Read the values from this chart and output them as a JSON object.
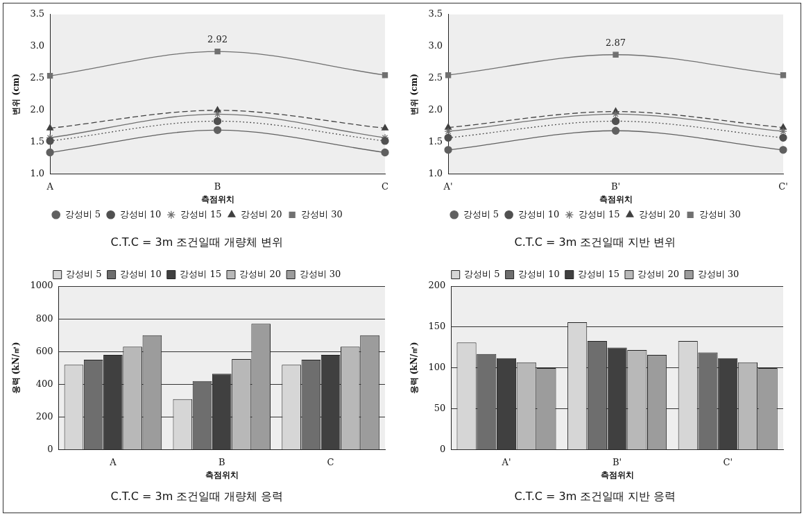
{
  "chart_data": [
    {
      "type": "line",
      "title": "C.T.C = 3m 조건일때 개량체 변위",
      "xlabel": "측점위치",
      "ylabel": "변위 (cm)",
      "categories": [
        "A",
        "B",
        "C"
      ],
      "ylim": [
        1.0,
        3.5
      ],
      "yticks": [
        {
          "value": 1.0,
          "label": "1.0"
        },
        {
          "value": 1.5,
          "label": "1.5"
        },
        {
          "value": 2.0,
          "label": "2.0"
        },
        {
          "value": 2.5,
          "label": "2.5"
        },
        {
          "value": 3.0,
          "label": "3.0"
        },
        {
          "value": 3.5,
          "label": "3.5"
        }
      ],
      "grid": false,
      "legend": "bottom",
      "series": [
        {
          "name": "강성비 5",
          "color": "#606060",
          "marker": "circle",
          "line_style": "solid",
          "values": [
            1.34,
            1.69,
            1.34
          ]
        },
        {
          "name": "강성비 10",
          "color": "#505050",
          "marker": "circle",
          "line_style": "dotted",
          "values": [
            1.52,
            1.83,
            1.52
          ]
        },
        {
          "name": "강성비 15",
          "color": "#707070",
          "marker": "cross",
          "line_style": "solid",
          "values": [
            1.57,
            1.94,
            1.57
          ]
        },
        {
          "name": "강성비 20",
          "color": "#404040",
          "marker": "triangle",
          "line_style": "dashed",
          "values": [
            1.72,
            2.0,
            1.72
          ]
        },
        {
          "name": "강성비 30",
          "color": "#707070",
          "marker": "square",
          "line_style": "solid",
          "values": [
            2.54,
            2.92,
            2.55
          ],
          "value_labels": [
            null,
            "2.92",
            null
          ]
        }
      ]
    },
    {
      "type": "line",
      "title": "C.T.C = 3m 조건일때 지반 변위",
      "xlabel": "측점위치",
      "ylabel": "변위 (cm)",
      "categories": [
        "A'",
        "B'",
        "C'"
      ],
      "ylim": [
        1.0,
        3.5
      ],
      "yticks": [
        {
          "value": 1.0,
          "label": "1.0"
        },
        {
          "value": 1.5,
          "label": "1.5"
        },
        {
          "value": 2.0,
          "label": "2.0"
        },
        {
          "value": 2.5,
          "label": "2.5"
        },
        {
          "value": 3.0,
          "label": "3.0"
        },
        {
          "value": 3.5,
          "label": "3.5"
        }
      ],
      "grid": false,
      "legend": "bottom",
      "series": [
        {
          "name": "강성비 5",
          "color": "#606060",
          "marker": "circle",
          "line_style": "solid",
          "values": [
            1.38,
            1.68,
            1.38
          ]
        },
        {
          "name": "강성비 10",
          "color": "#505050",
          "marker": "circle",
          "line_style": "dotted",
          "values": [
            1.57,
            1.83,
            1.57
          ]
        },
        {
          "name": "강성비 15",
          "color": "#707070",
          "marker": "cross",
          "line_style": "solid",
          "values": [
            1.67,
            1.94,
            1.67
          ]
        },
        {
          "name": "강성비 20",
          "color": "#404040",
          "marker": "triangle",
          "line_style": "dashed",
          "values": [
            1.73,
            1.98,
            1.73
          ]
        },
        {
          "name": "강성비 30",
          "color": "#707070",
          "marker": "square",
          "line_style": "solid",
          "values": [
            2.55,
            2.87,
            2.55
          ],
          "value_labels": [
            null,
            "2.87",
            null
          ]
        }
      ]
    },
    {
      "type": "bar",
      "title": "C.T.C = 3m 조건일때 개량체 응력",
      "xlabel": "측점위치",
      "ylabel": "응력 (kN/㎡)",
      "categories": [
        "A",
        "B",
        "C"
      ],
      "ylim": [
        0,
        1000
      ],
      "yticks": [
        0,
        200,
        400,
        600,
        800,
        1000
      ],
      "grid": "y",
      "legend": "top",
      "series": [
        {
          "name": "강성비 5",
          "color": "#d6d6d6",
          "values": [
            520,
            310,
            520
          ]
        },
        {
          "name": "강성비 10",
          "color": "#6e6e6e",
          "values": [
            550,
            420,
            550
          ]
        },
        {
          "name": "강성비 15",
          "color": "#404040",
          "values": [
            580,
            465,
            580
          ]
        },
        {
          "name": "강성비 20",
          "color": "#b8b8b8",
          "values": [
            630,
            555,
            630
          ]
        },
        {
          "name": "강성비 30",
          "color": "#9c9c9c",
          "values": [
            700,
            770,
            700
          ]
        }
      ]
    },
    {
      "type": "bar",
      "title": "C.T.C = 3m 조건일때 지반 응력",
      "xlabel": "측점위치",
      "ylabel": "응력 (kN/㎡)",
      "categories": [
        "A'",
        "B'",
        "C'"
      ],
      "ylim": [
        0,
        200
      ],
      "yticks": [
        0,
        50,
        100,
        150,
        200
      ],
      "grid": "y",
      "legend": "top",
      "series": [
        {
          "name": "강성비 5",
          "color": "#d6d6d6",
          "values": [
            131,
            156,
            133
          ]
        },
        {
          "name": "강성비 10",
          "color": "#6e6e6e",
          "values": [
            117,
            133,
            119
          ]
        },
        {
          "name": "강성비 15",
          "color": "#404040",
          "values": [
            112,
            125,
            112
          ]
        },
        {
          "name": "강성비 20",
          "color": "#b8b8b8",
          "values": [
            107,
            122,
            107
          ]
        },
        {
          "name": "강성비 30",
          "color": "#9c9c9c",
          "values": [
            100,
            116,
            100
          ]
        }
      ]
    }
  ]
}
